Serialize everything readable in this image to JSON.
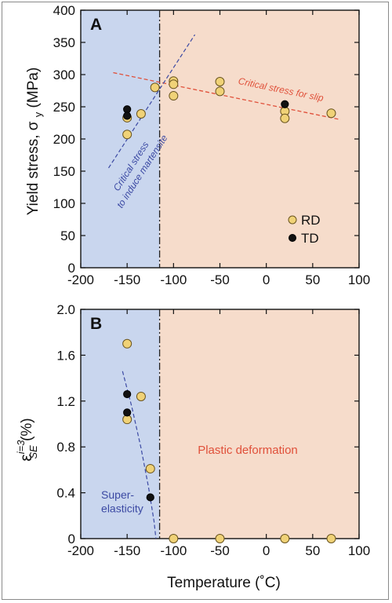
{
  "chart_data": [
    {
      "panel_letter": "A",
      "type": "scatter",
      "ylabel": "Yield stress, σ",
      "ylabel_sub": "y",
      "ylabel_unit": "(MPa)",
      "xlim": [
        -200,
        100
      ],
      "ylim": [
        0,
        400
      ],
      "xticks": [
        "-200",
        "-150",
        "-100",
        "-50",
        "0",
        "50",
        "100"
      ],
      "yticks": [
        "0",
        "50",
        "100",
        "150",
        "200",
        "250",
        "300",
        "350",
        "400"
      ],
      "boundary_x": -115,
      "colors": {
        "left_region": "#c9d6ee",
        "right_region": "#f6dccb",
        "rd": "#f0d277",
        "td": "#111111",
        "slip_line": "#e0503a",
        "martensite_line": "#3b49a3"
      },
      "series": [
        {
          "name": "RD",
          "points": [
            [
              -150,
              233
            ],
            [
              -150,
              207
            ],
            [
              -135,
              239
            ],
            [
              -120,
              280
            ],
            [
              -100,
              290
            ],
            [
              -100,
              285
            ],
            [
              -100,
              267
            ],
            [
              -50,
              289
            ],
            [
              -50,
              274
            ],
            [
              20,
              243
            ],
            [
              20,
              232
            ],
            [
              70,
              240
            ]
          ]
        },
        {
          "name": "TD",
          "points": [
            [
              -150,
              246
            ],
            [
              -150,
              236
            ],
            [
              20,
              254
            ]
          ]
        }
      ],
      "lines": [
        {
          "label": "Critical stress for slip",
          "from": [
            -165,
            303
          ],
          "to": [
            80,
            230
          ]
        },
        {
          "label_line1": "Critical stress",
          "label_line2": "to induce martensite",
          "from": [
            -170,
            155
          ],
          "to": [
            -77,
            362
          ]
        }
      ],
      "legend": {
        "placement": "bottom-right",
        "entries": [
          "RD",
          "TD"
        ]
      }
    },
    {
      "panel_letter": "B",
      "type": "scatter",
      "xlabel": "Temperature (˚C)",
      "ylabel_symbol": "ε",
      "ylabel_sup": "i=3",
      "ylabel_sub": "SE",
      "ylabel_unit": "(%)",
      "xlim": [
        -200,
        100
      ],
      "ylim": [
        0,
        2.0
      ],
      "xticks": [
        "-200",
        "-150",
        "-100",
        "-50",
        "0",
        "50",
        "100"
      ],
      "yticks": [
        "0",
        "0.4",
        "0.8",
        "1.2",
        "1.6",
        "2.0"
      ],
      "boundary_x": -115,
      "series": [
        {
          "name": "RD",
          "points": [
            [
              -150,
              1.7
            ],
            [
              -150,
              1.04
            ],
            [
              -135,
              1.24
            ],
            [
              -125,
              0.61
            ],
            [
              -100,
              0.0
            ],
            [
              -50,
              0.0
            ],
            [
              20,
              0.0
            ],
            [
              70,
              0.0
            ]
          ]
        },
        {
          "name": "TD",
          "points": [
            [
              -150,
              1.26
            ],
            [
              -150,
              1.1
            ],
            [
              -125,
              0.36
            ]
          ]
        }
      ],
      "curve": [
        [
          -155,
          1.46
        ],
        [
          -145,
          1.15
        ],
        [
          -135,
          0.79
        ],
        [
          -127,
          0.45
        ],
        [
          -121,
          0.15
        ],
        [
          -119,
          0.0
        ]
      ],
      "region_labels": {
        "left_line1": "Super-",
        "left_line2": "elasticity",
        "right": "Plastic deformation"
      }
    }
  ]
}
